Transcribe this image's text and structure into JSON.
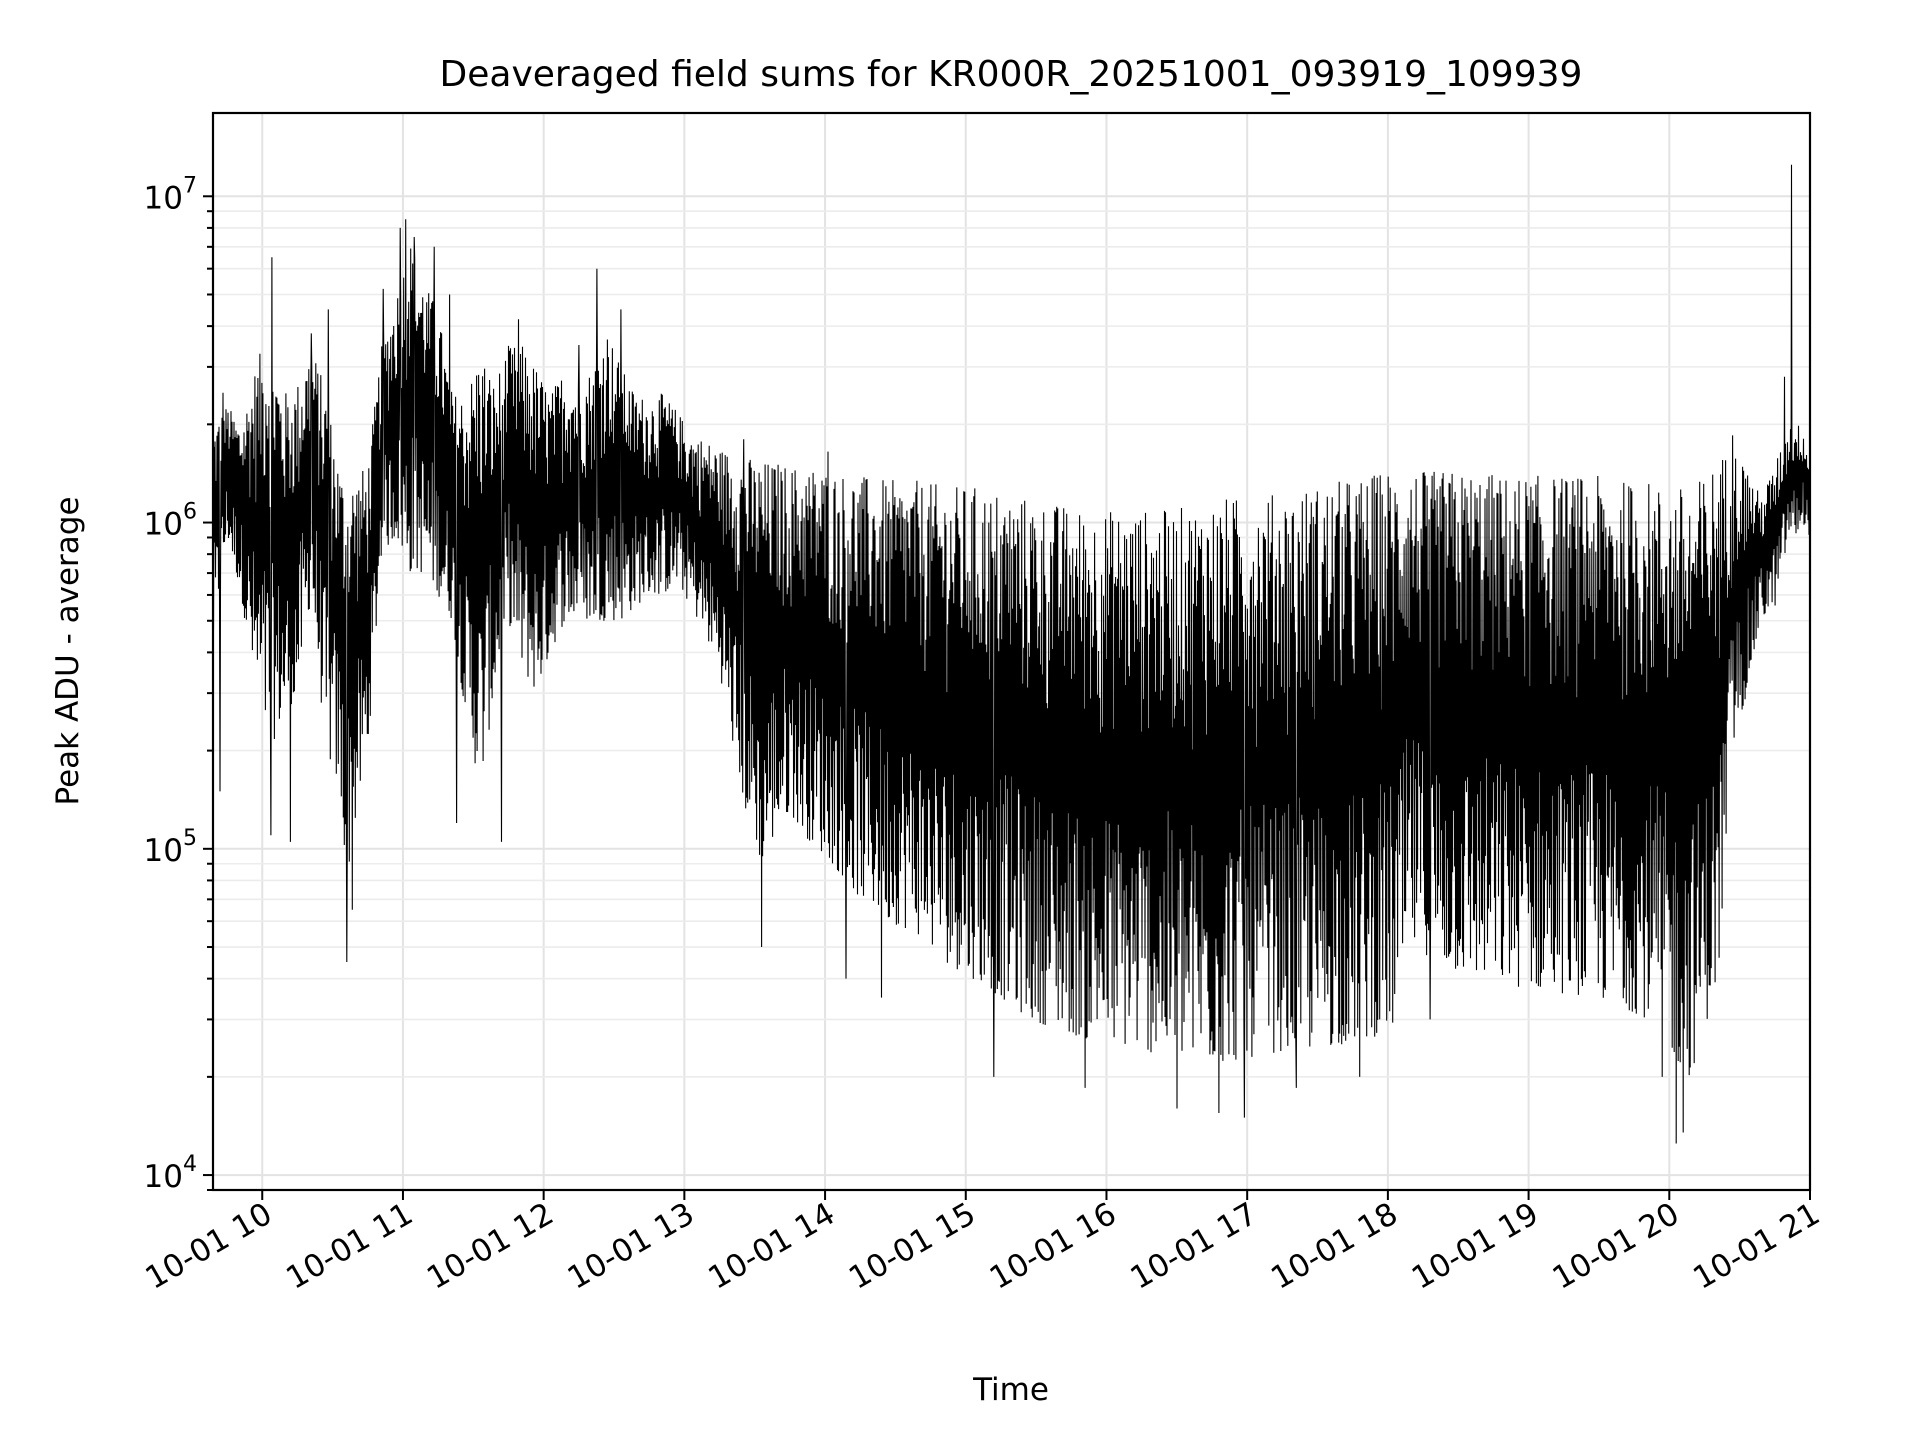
{
  "chart_data": {
    "type": "line",
    "title": "Deaveraged field sums for KR000R_20251001_093919_109939",
    "xlabel": "Time",
    "ylabel": "Peak ADU - average",
    "yscale": "log",
    "grid": true,
    "xlim": [
      "2025-10-01 09:39",
      "2025-10-01 21:00"
    ],
    "ylim": [
      9000,
      18000000
    ],
    "x_ticks": [
      "10-01 10",
      "10-01 11",
      "10-01 12",
      "10-01 13",
      "10-01 14",
      "10-01 15",
      "10-01 16",
      "10-01 17",
      "10-01 18",
      "10-01 19",
      "10-01 20",
      "10-01 21"
    ],
    "y_ticks": [
      {
        "value": 10000,
        "base": "10",
        "exp": "4"
      },
      {
        "value": 100000,
        "base": "10",
        "exp": "5"
      },
      {
        "value": 1000000,
        "base": "10",
        "exp": "6"
      },
      {
        "value": 10000000,
        "base": "10",
        "exp": "7"
      }
    ],
    "color": "#000000",
    "series": [
      {
        "hours": [
          9.65,
          9.75,
          9.85,
          9.95,
          10.05,
          10.15,
          10.25,
          10.35,
          10.45,
          10.55,
          10.6,
          10.65,
          10.75,
          10.85,
          10.95,
          11.05,
          11.15,
          11.25,
          11.35,
          11.45,
          11.55,
          11.65,
          11.75,
          11.85,
          11.95,
          12.05,
          12.15,
          12.25,
          12.35,
          12.45,
          12.55,
          12.65,
          12.75,
          12.85,
          12.95,
          13.05,
          13.15,
          13.25,
          13.35,
          13.45,
          13.55,
          13.65,
          13.75,
          13.85,
          13.95,
          14.05,
          14.25,
          14.45,
          14.65,
          14.85,
          15.05,
          15.25,
          15.45,
          15.65,
          15.85,
          16.05,
          16.25,
          16.45,
          16.65,
          16.85,
          17.05,
          17.25,
          17.45,
          17.65,
          17.85,
          18.05,
          18.15,
          18.25,
          18.45,
          18.65,
          18.85,
          19.05,
          19.25,
          19.45,
          19.65,
          19.85,
          19.95,
          20.05,
          20.15,
          20.25,
          20.35,
          20.45,
          20.55,
          20.65,
          20.75,
          20.85,
          20.9,
          20.95,
          21.0
        ],
        "upper": [
          2000000,
          2300000,
          2000000,
          3000000,
          4000000,
          2500000,
          2700000,
          3500000,
          2600000,
          1500000,
          1300000,
          1400000,
          1500000,
          3500000,
          5000000,
          7500000,
          5500000,
          4500000,
          2500000,
          2500000,
          3500000,
          2700000,
          3500000,
          3500000,
          3000000,
          2500000,
          3000000,
          2700000,
          3000000,
          4000000,
          3000000,
          2500000,
          2400000,
          2500000,
          2200000,
          1900000,
          1800000,
          1700000,
          1650000,
          1600000,
          1550000,
          1550000,
          1500000,
          1500000,
          1500000,
          1450000,
          1400000,
          1350000,
          1350000,
          1300000,
          1300000,
          1250000,
          1200000,
          1150000,
          1100000,
          1100000,
          1100000,
          1100000,
          1150000,
          1200000,
          1200000,
          1250000,
          1300000,
          1350000,
          1400000,
          1500000,
          1500000,
          1450000,
          1450000,
          1450000,
          1400000,
          1400000,
          1400000,
          1400000,
          1350000,
          1350000,
          1300000,
          1300000,
          1300000,
          1400000,
          1600000,
          1700000,
          1500000,
          1200000,
          1500000,
          2000000,
          2000000,
          2000000,
          1500000
        ],
        "lower": [
          400000,
          900000,
          600000,
          300000,
          200000,
          250000,
          300000,
          600000,
          200000,
          150000,
          80000,
          110000,
          200000,
          800000,
          900000,
          700000,
          700000,
          600000,
          500000,
          250000,
          150000,
          300000,
          500000,
          350000,
          300000,
          400000,
          500000,
          500000,
          500000,
          500000,
          500000,
          550000,
          600000,
          600000,
          650000,
          550000,
          450000,
          350000,
          200000,
          120000,
          90000,
          110000,
          130000,
          110000,
          100000,
          90000,
          70000,
          60000,
          55000,
          45000,
          40000,
          35000,
          30000,
          28000,
          26000,
          25000,
          24000,
          23000,
          22000,
          22000,
          23000,
          24000,
          24000,
          25000,
          26000,
          28000,
          50000,
          48000,
          42000,
          40000,
          38000,
          37000,
          36000,
          35000,
          33000,
          30000,
          27000,
          22000,
          20000,
          28000,
          40000,
          200000,
          300000,
          500000,
          550000,
          900000,
          900000,
          1000000,
          900000
        ],
        "peaks": [
          {
            "hour": 9.72,
            "value": 2500000
          },
          {
            "hour": 10.07,
            "value": 6500000
          },
          {
            "hour": 10.35,
            "value": 3800000
          },
          {
            "hour": 10.47,
            "value": 4500000
          },
          {
            "hour": 10.86,
            "value": 5200000
          },
          {
            "hour": 10.98,
            "value": 8000000
          },
          {
            "hour": 11.02,
            "value": 8500000
          },
          {
            "hour": 11.08,
            "value": 7500000
          },
          {
            "hour": 11.22,
            "value": 7000000
          },
          {
            "hour": 11.33,
            "value": 5000000
          },
          {
            "hour": 11.82,
            "value": 4200000
          },
          {
            "hour": 12.25,
            "value": 3500000
          },
          {
            "hour": 12.38,
            "value": 6000000
          },
          {
            "hour": 12.55,
            "value": 4500000
          },
          {
            "hour": 13.42,
            "value": 1800000
          },
          {
            "hour": 14.02,
            "value": 1650000
          },
          {
            "hour": 20.45,
            "value": 1850000
          },
          {
            "hour": 20.82,
            "value": 2800000
          },
          {
            "hour": 20.87,
            "value": 12500000
          }
        ],
        "dips": [
          {
            "hour": 9.7,
            "value": 150000
          },
          {
            "hour": 10.06,
            "value": 110000
          },
          {
            "hour": 10.2,
            "value": 105000
          },
          {
            "hour": 10.6,
            "value": 45000
          },
          {
            "hour": 10.64,
            "value": 65000
          },
          {
            "hour": 11.38,
            "value": 120000
          },
          {
            "hour": 11.7,
            "value": 105000
          },
          {
            "hour": 13.55,
            "value": 50000
          },
          {
            "hour": 14.15,
            "value": 40000
          },
          {
            "hour": 14.4,
            "value": 35000
          },
          {
            "hour": 15.2,
            "value": 20000
          },
          {
            "hour": 15.85,
            "value": 18500
          },
          {
            "hour": 16.5,
            "value": 16000
          },
          {
            "hour": 16.8,
            "value": 15500
          },
          {
            "hour": 16.98,
            "value": 15000
          },
          {
            "hour": 17.35,
            "value": 18500
          },
          {
            "hour": 17.8,
            "value": 20000
          },
          {
            "hour": 18.3,
            "value": 30000
          },
          {
            "hour": 19.95,
            "value": 20000
          },
          {
            "hour": 20.05,
            "value": 12500
          },
          {
            "hour": 20.1,
            "value": 13500
          }
        ]
      }
    ]
  }
}
